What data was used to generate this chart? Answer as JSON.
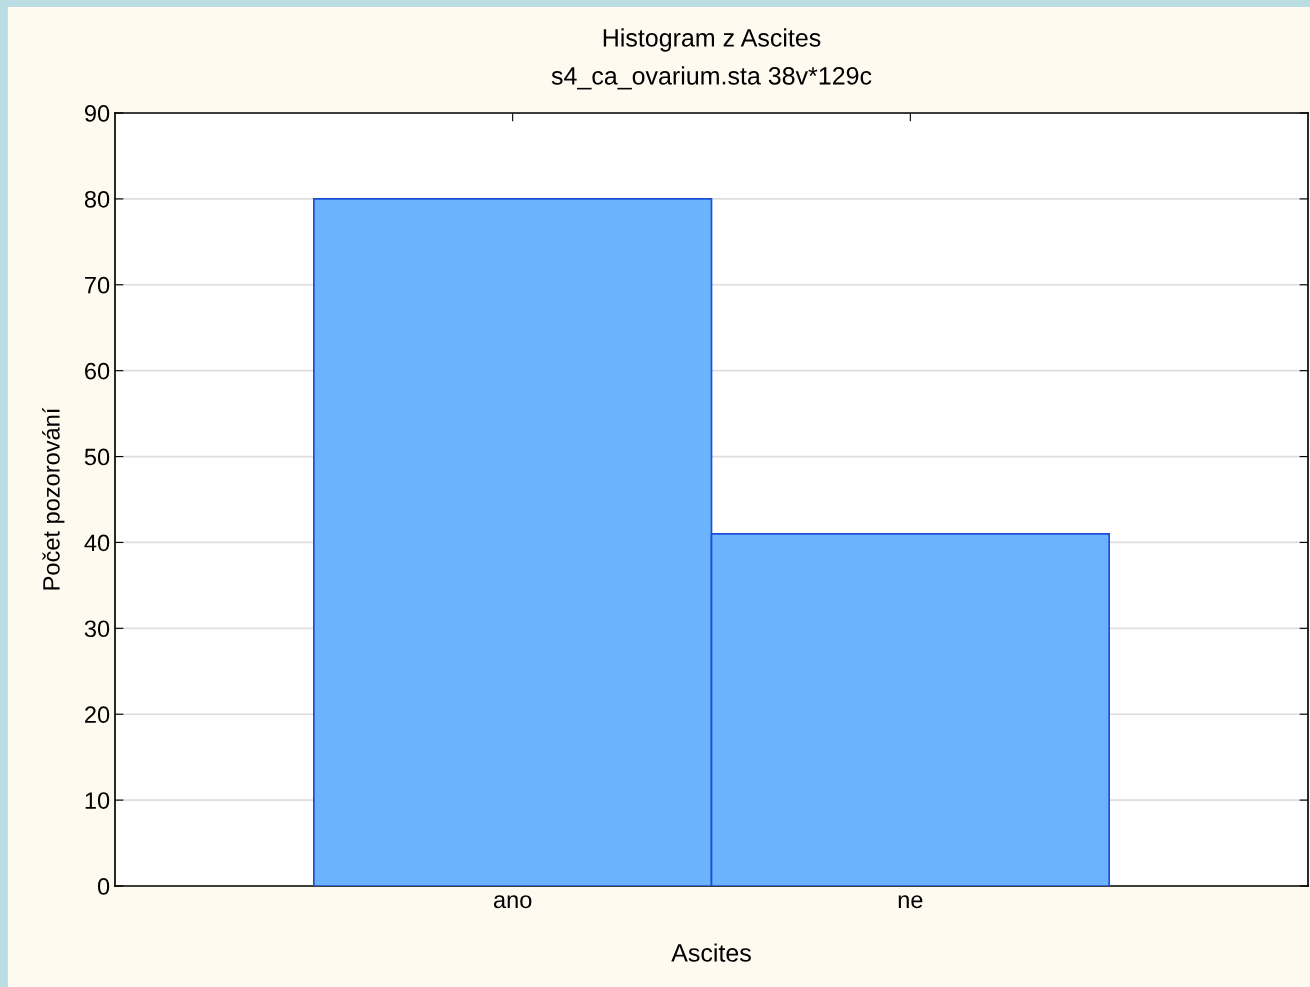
{
  "chart_data": {
    "type": "bar",
    "title": "Histogram z Ascites",
    "subtitle": "s4_ca_ovarium.sta 38v*129c",
    "xlabel": "Ascites",
    "ylabel": "Počet pozorování",
    "categories": [
      "ano",
      "ne"
    ],
    "series": [
      {
        "color": "#6cb3fd",
        "values": [
          80,
          41
        ]
      }
    ],
    "ylim": [
      0,
      90
    ],
    "yticks": [
      0,
      10,
      20,
      30,
      40,
      50,
      60,
      70,
      80,
      90
    ],
    "grid": "y"
  }
}
